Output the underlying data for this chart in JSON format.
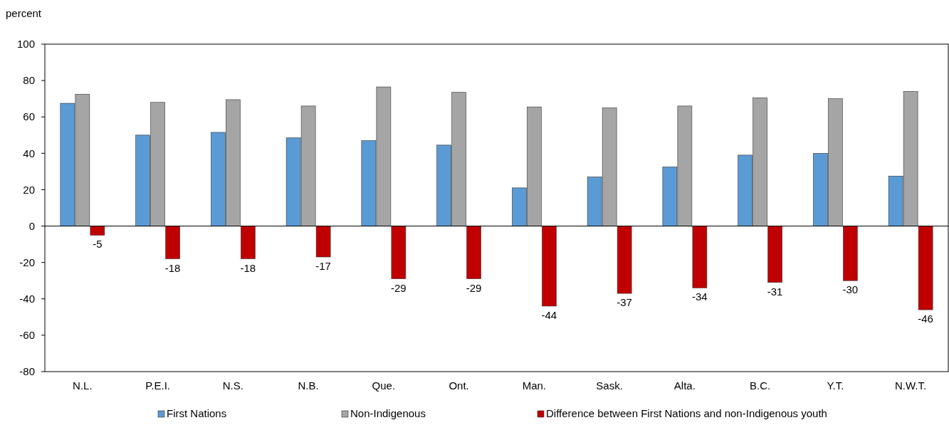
{
  "chart_data": {
    "type": "bar",
    "ylabel": "percent",
    "categories": [
      "N.L.",
      "P.E.I.",
      "N.S.",
      "N.B.",
      "Que.",
      "Ont.",
      "Man.",
      "Sask.",
      "Alta.",
      "B.C.",
      "Y.T.",
      "N.W.T."
    ],
    "series": [
      {
        "name": "First Nations",
        "color": "#5b9bd5",
        "values": [
          67.5,
          50,
          51.5,
          48.5,
          47,
          44.5,
          21,
          27,
          32.5,
          39,
          40,
          27.5
        ]
      },
      {
        "name": "Non-Indigenous",
        "color": "#a5a5a5",
        "values": [
          72.5,
          68,
          69.5,
          66,
          76.5,
          73.5,
          65.5,
          65,
          66,
          70.5,
          70,
          74
        ]
      },
      {
        "name": "Difference between First Nations and non-Indigenous youth",
        "color": "#c00000",
        "values": [
          -5,
          -18,
          -18,
          -17,
          -29,
          -29,
          -44,
          -37,
          -34,
          -31,
          -30,
          -46
        ],
        "value_labels": [
          "-5",
          "-18",
          "-18",
          "-17",
          "-29",
          "-29",
          "-44",
          "-37",
          "-34",
          "-31",
          "-30",
          "-46"
        ]
      }
    ],
    "ylim": [
      -80,
      100
    ],
    "yticks": [
      -80,
      -60,
      -40,
      -20,
      0,
      20,
      40,
      60,
      80,
      100
    ],
    "legend": "bottom"
  }
}
